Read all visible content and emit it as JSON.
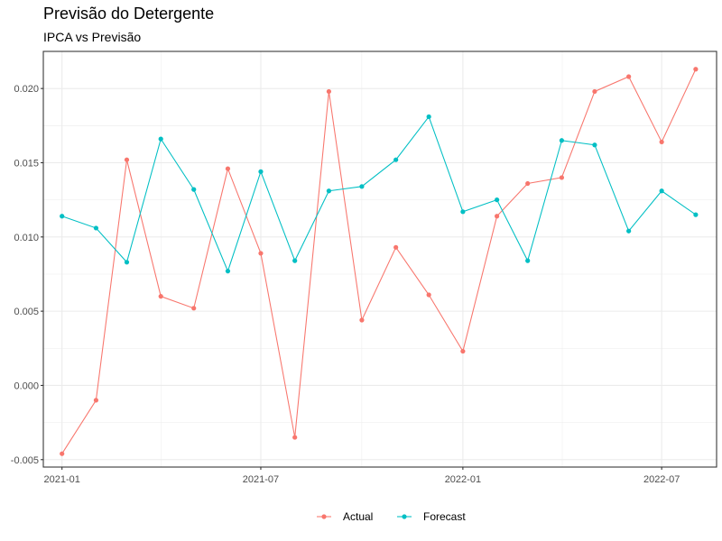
{
  "chart_data": {
    "type": "line",
    "title": "Previsão do Detergente",
    "subtitle": "IPCA vs Previsão",
    "xlabel": "",
    "ylabel": "",
    "grid": true,
    "legend_position": "bottom",
    "x": [
      "2021-01-01",
      "2021-02-01",
      "2021-03-01",
      "2021-04-01",
      "2021-05-01",
      "2021-06-01",
      "2021-07-01",
      "2021-08-01",
      "2021-09-01",
      "2021-10-01",
      "2021-11-01",
      "2021-12-01",
      "2022-01-01",
      "2022-02-01",
      "2022-03-01",
      "2022-04-01",
      "2022-05-01",
      "2022-06-01",
      "2022-07-01",
      "2022-08-01"
    ],
    "xlim": [
      "2020-12-15",
      "2022-08-20"
    ],
    "ylim": [
      -0.0055,
      0.0225
    ],
    "x_ticks": [
      {
        "date": "2021-01-01",
        "label": "2021-01"
      },
      {
        "date": "2021-07-01",
        "label": "2021-07"
      },
      {
        "date": "2022-01-01",
        "label": "2022-01"
      },
      {
        "date": "2022-07-01",
        "label": "2022-07"
      }
    ],
    "y_ticks": [
      {
        "value": -0.005,
        "label": "-0.005"
      },
      {
        "value": 0.0,
        "label": "0.000"
      },
      {
        "value": 0.005,
        "label": "0.005"
      },
      {
        "value": 0.01,
        "label": "0.010"
      },
      {
        "value": 0.015,
        "label": "0.015"
      },
      {
        "value": 0.02,
        "label": "0.020"
      }
    ],
    "series": [
      {
        "name": "Actual",
        "color": "#F8766D",
        "values": [
          -0.0046,
          -0.001,
          0.0152,
          0.006,
          0.0052,
          0.0146,
          0.0089,
          -0.0035,
          0.0198,
          0.0044,
          0.0093,
          0.0061,
          0.0023,
          0.0114,
          0.0136,
          0.014,
          0.0198,
          0.0208,
          0.0164,
          0.0213
        ]
      },
      {
        "name": "Forecast",
        "color": "#00BFC4",
        "values": [
          0.0114,
          0.0106,
          0.0083,
          0.0166,
          0.0132,
          0.0077,
          0.0144,
          0.0084,
          0.0131,
          0.0134,
          0.0152,
          0.0181,
          0.0117,
          0.0125,
          0.0084,
          0.0165,
          0.0162,
          0.0104,
          0.0131,
          0.0115
        ]
      }
    ]
  }
}
